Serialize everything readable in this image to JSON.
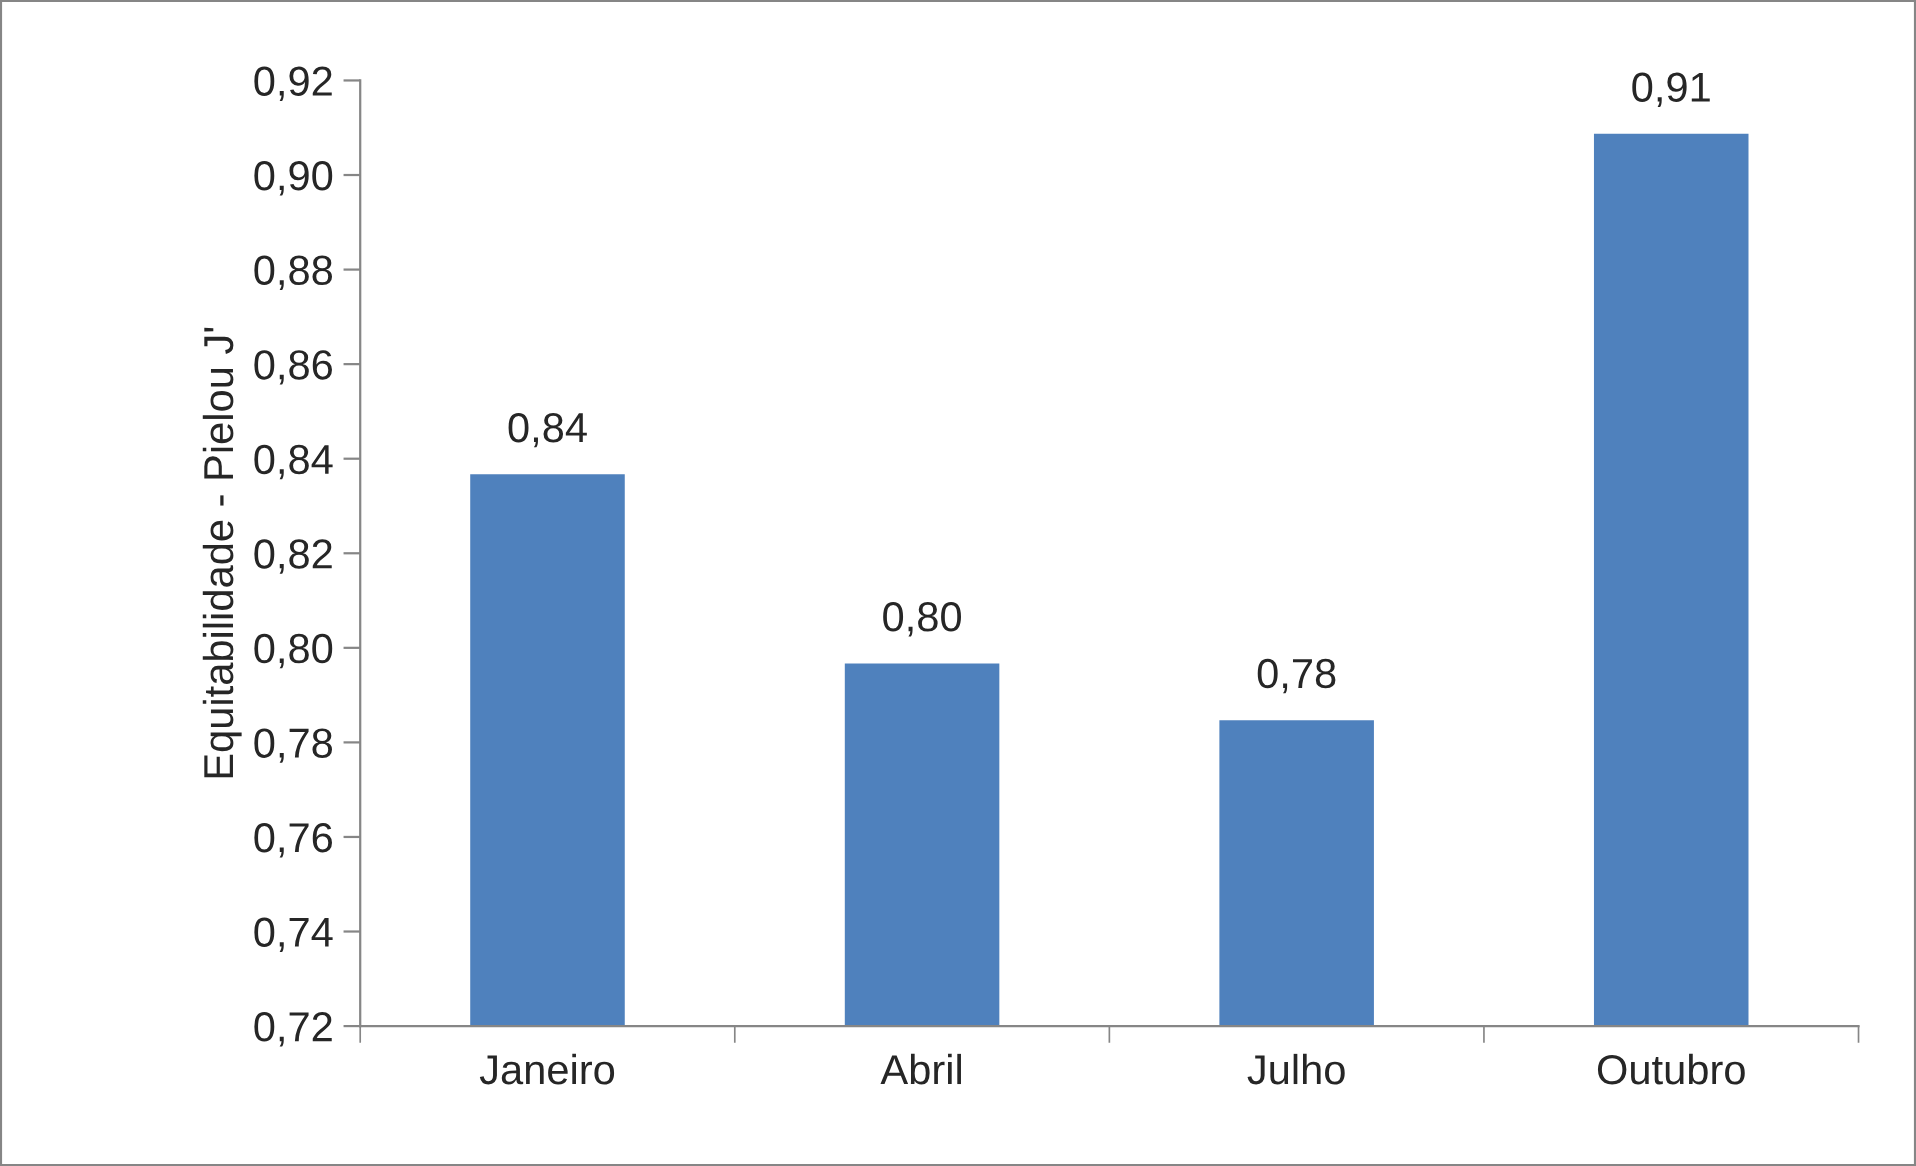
{
  "chart_data": {
    "type": "bar",
    "ylabel": "Equitabilidade - Pielou J'",
    "categories": [
      "Janeiro",
      "Abril",
      "Julho",
      "Outubro"
    ],
    "values": [
      0.837,
      0.797,
      0.785,
      0.909
    ],
    "value_labels": [
      "0,84",
      "0,80",
      "0,78",
      "0,91"
    ],
    "color": "#4f81bd",
    "ylim": [
      0.72,
      0.92
    ],
    "yticks": [
      {
        "value": 0.72,
        "label": "0,72"
      },
      {
        "value": 0.74,
        "label": "0,74"
      },
      {
        "value": 0.76,
        "label": "0,76"
      },
      {
        "value": 0.78,
        "label": "0,78"
      },
      {
        "value": 0.8,
        "label": "0,80"
      },
      {
        "value": 0.82,
        "label": "0,82"
      },
      {
        "value": 0.84,
        "label": "0,84"
      },
      {
        "value": 0.86,
        "label": "0,86"
      },
      {
        "value": 0.88,
        "label": "0,88"
      },
      {
        "value": 0.9,
        "label": "0,90"
      },
      {
        "value": 0.92,
        "label": "0,92"
      }
    ],
    "grid": false,
    "legend": false
  }
}
